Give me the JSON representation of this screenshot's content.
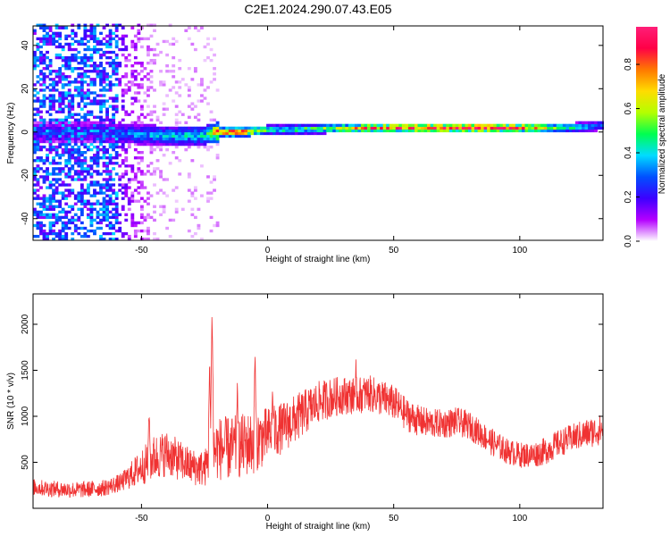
{
  "title": "C2E1.2024.290.07.43.E05",
  "chart_data": [
    {
      "type": "heatmap",
      "title": "",
      "xlabel": "Height of straight line (km)",
      "ylabel": "Frequency (Hz)",
      "xlim": [
        -93,
        133
      ],
      "ylim": [
        -50,
        49
      ],
      "xticks": [
        -50,
        0,
        50,
        100
      ],
      "yticks": [
        -40,
        -20,
        0,
        20,
        40
      ],
      "colorbar": {
        "label": "Normalized spectral amplitude",
        "range": [
          0,
          0.97
        ],
        "ticks": [
          0.0,
          0.2,
          0.4,
          0.6,
          0.8
        ],
        "colormap": [
          "#ffffff",
          "#b400ff",
          "#3c00ff",
          "#0050ff",
          "#00dcff",
          "#00ff50",
          "#b4ff00",
          "#ffdc00",
          "#ff7800",
          "#ff0046",
          "#ff1e78"
        ]
      },
      "ridge": [
        {
          "x": -65,
          "y": 0.0,
          "amp": 0.25
        },
        {
          "x": -55,
          "y": -1.0,
          "amp": 0.35
        },
        {
          "x": -40,
          "y": -1.5,
          "amp": 0.4
        },
        {
          "x": -25,
          "y": -1.5,
          "amp": 0.45
        },
        {
          "x": -20,
          "y": 0.0,
          "amp": 0.85
        },
        {
          "x": -10,
          "y": 0.0,
          "amp": 0.9
        },
        {
          "x": 0,
          "y": 1.0,
          "amp": 0.5
        },
        {
          "x": 20,
          "y": 1.5,
          "amp": 0.55
        },
        {
          "x": 40,
          "y": 2.0,
          "amp": 0.8
        },
        {
          "x": 60,
          "y": 2.0,
          "amp": 0.9
        },
        {
          "x": 80,
          "y": 2.0,
          "amp": 0.95
        },
        {
          "x": 100,
          "y": 2.0,
          "amp": 0.85
        },
        {
          "x": 120,
          "y": 2.0,
          "amp": 0.45
        },
        {
          "x": 133,
          "y": 3.0,
          "amp": 0.35
        }
      ]
    },
    {
      "type": "line",
      "title": "",
      "xlabel": "Height of straight line (km)",
      "ylabel": "SNR (10 * v/v)",
      "xlim": [
        -93,
        133
      ],
      "ylim": [
        0,
        2330
      ],
      "xticks": [
        -50,
        0,
        50,
        100
      ],
      "yticks": [
        500,
        1000,
        1500,
        2000
      ],
      "color": "#f03232",
      "series": [
        {
          "x": [
            -93,
            -85,
            -75,
            -65,
            -58,
            -50,
            -45,
            -40,
            -35,
            -30,
            -25,
            -22,
            -20,
            -15,
            -10,
            -5,
            0,
            5,
            10,
            15,
            20,
            25,
            30,
            35,
            40,
            45,
            50,
            55,
            60,
            65,
            70,
            75,
            80,
            85,
            90,
            95,
            100,
            105,
            110,
            115,
            120,
            125,
            133
          ],
          "y": [
            230,
            210,
            200,
            220,
            280,
            450,
            550,
            600,
            520,
            450,
            430,
            600,
            650,
            650,
            680,
            720,
            800,
            860,
            950,
            1050,
            1150,
            1200,
            1230,
            1220,
            1250,
            1200,
            1150,
            1020,
            950,
            920,
            920,
            940,
            900,
            800,
            700,
            620,
            580,
            580,
            620,
            700,
            760,
            800,
            860
          ],
          "noise": [
            90,
            90,
            90,
            90,
            100,
            200,
            250,
            250,
            220,
            200,
            200,
            300,
            350,
            350,
            350,
            350,
            300,
            280,
            270,
            250,
            230,
            220,
            210,
            200,
            200,
            200,
            190,
            180,
            170,
            160,
            160,
            160,
            150,
            150,
            150,
            140,
            140,
            140,
            150,
            150,
            150,
            160,
            170
          ]
        }
      ],
      "peaks": [
        {
          "x": -22,
          "y": 2330
        },
        {
          "x": -23,
          "y": 1700
        },
        {
          "x": -5,
          "y": 1830
        },
        {
          "x": -12,
          "y": 1420
        },
        {
          "x": -47,
          "y": 1180
        },
        {
          "x": 2,
          "y": 1420
        },
        {
          "x": 35,
          "y": 1720
        }
      ]
    }
  ]
}
